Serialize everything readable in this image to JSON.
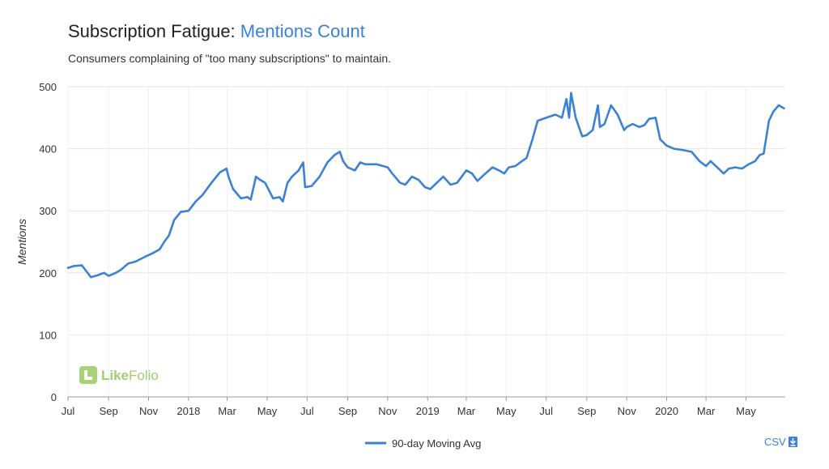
{
  "header": {
    "title_main": "Subscription Fatigue: ",
    "title_accent": "Mentions Count",
    "subtitle": "Consumers complaining of \"too many subscriptions\" to maintain."
  },
  "watermark": {
    "brand": "LikeFolio",
    "brand_part1": "Like",
    "brand_part2": "Folio"
  },
  "csv": {
    "label": "CSV"
  },
  "colors": {
    "line": "#3b82d6",
    "accent": "#3b82d6",
    "grid": "#e6e6e6",
    "logo": "#8bc34a"
  },
  "chart_data": {
    "type": "line",
    "ylabel": "Mentions",
    "ylim": [
      0,
      500
    ],
    "yticks": [
      "0",
      "100",
      "200",
      "300",
      "400",
      "500"
    ],
    "xticks": [
      "Jul",
      "Sep",
      "Nov",
      "2018",
      "Mar",
      "May",
      "Jul",
      "Sep",
      "Nov",
      "2019",
      "Mar",
      "May",
      "Jul",
      "Sep",
      "Nov",
      "2020",
      "Mar",
      "May"
    ],
    "xtick_dates": [
      "2017-07-01",
      "2017-09-01",
      "2017-11-01",
      "2018-01-01",
      "2018-03-01",
      "2018-05-01",
      "2018-07-01",
      "2018-09-01",
      "2018-11-01",
      "2019-01-01",
      "2019-03-01",
      "2019-05-01",
      "2019-07-01",
      "2019-09-01",
      "2019-11-01",
      "2020-01-01",
      "2020-03-01",
      "2020-05-01"
    ],
    "xlim": [
      "2017-07-01",
      "2020-06-30"
    ],
    "grid": true,
    "legend_position": "bottom-center",
    "series": [
      {
        "name": "90-day Moving Avg",
        "color": "#3b82d6",
        "x": [
          "2017-07-01",
          "2017-07-10",
          "2017-07-22",
          "2017-07-28",
          "2017-08-05",
          "2017-08-15",
          "2017-08-25",
          "2017-09-01",
          "2017-09-12",
          "2017-09-20",
          "2017-10-01",
          "2017-10-12",
          "2017-10-25",
          "2017-11-08",
          "2017-11-18",
          "2017-11-25",
          "2017-12-02",
          "2017-12-10",
          "2017-12-20",
          "2018-01-01",
          "2018-01-12",
          "2018-01-22",
          "2018-02-05",
          "2018-02-18",
          "2018-02-28",
          "2018-03-03",
          "2018-03-10",
          "2018-03-22",
          "2018-04-01",
          "2018-04-06",
          "2018-04-14",
          "2018-04-20",
          "2018-04-28",
          "2018-05-10",
          "2018-05-20",
          "2018-05-25",
          "2018-06-01",
          "2018-06-08",
          "2018-06-18",
          "2018-06-25",
          "2018-06-28",
          "2018-07-08",
          "2018-07-20",
          "2018-08-01",
          "2018-08-12",
          "2018-08-20",
          "2018-08-25",
          "2018-09-01",
          "2018-09-12",
          "2018-09-20",
          "2018-09-28",
          "2018-10-15",
          "2018-11-01",
          "2018-11-08",
          "2018-11-20",
          "2018-11-28",
          "2018-12-08",
          "2018-12-18",
          "2018-12-28",
          "2019-01-05",
          "2019-01-15",
          "2019-01-25",
          "2019-02-05",
          "2019-02-15",
          "2019-03-01",
          "2019-03-10",
          "2019-03-18",
          "2019-03-28",
          "2019-04-10",
          "2019-04-20",
          "2019-04-28",
          "2019-05-05",
          "2019-05-15",
          "2019-05-25",
          "2019-06-01",
          "2019-06-10",
          "2019-06-18",
          "2019-07-01",
          "2019-07-15",
          "2019-07-25",
          "2019-08-01",
          "2019-08-05",
          "2019-08-08",
          "2019-08-15",
          "2019-08-25",
          "2019-09-01",
          "2019-09-10",
          "2019-09-18",
          "2019-09-21",
          "2019-09-28",
          "2019-10-08",
          "2019-10-18",
          "2019-10-28",
          "2019-11-01",
          "2019-11-10",
          "2019-11-20",
          "2019-11-28",
          "2019-12-05",
          "2019-12-15",
          "2019-12-22",
          "2020-01-01",
          "2020-01-12",
          "2020-01-25",
          "2020-02-08",
          "2020-02-20",
          "2020-03-01",
          "2020-03-08",
          "2020-03-18",
          "2020-03-28",
          "2020-04-05",
          "2020-04-15",
          "2020-04-25",
          "2020-05-05",
          "2020-05-15",
          "2020-05-22",
          "2020-05-28",
          "2020-06-05",
          "2020-06-12",
          "2020-06-20",
          "2020-06-28"
        ],
        "y": [
          208,
          211,
          212,
          204,
          193,
          196,
          200,
          195,
          200,
          205,
          215,
          218,
          225,
          232,
          238,
          250,
          260,
          285,
          298,
          300,
          315,
          325,
          345,
          362,
          368,
          355,
          335,
          320,
          322,
          318,
          355,
          350,
          345,
          320,
          322,
          315,
          345,
          355,
          365,
          378,
          338,
          340,
          355,
          378,
          390,
          395,
          380,
          370,
          365,
          378,
          375,
          375,
          370,
          360,
          345,
          342,
          355,
          350,
          338,
          335,
          345,
          355,
          342,
          345,
          365,
          360,
          348,
          358,
          370,
          365,
          360,
          370,
          372,
          380,
          385,
          415,
          445,
          450,
          455,
          450,
          480,
          450,
          490,
          450,
          420,
          422,
          430,
          470,
          435,
          440,
          470,
          455,
          430,
          435,
          440,
          435,
          438,
          448,
          450,
          415,
          405,
          400,
          398,
          395,
          380,
          372,
          380,
          370,
          360,
          368,
          370,
          368,
          375,
          380,
          390,
          392,
          445,
          460,
          470,
          465
        ]
      }
    ]
  }
}
